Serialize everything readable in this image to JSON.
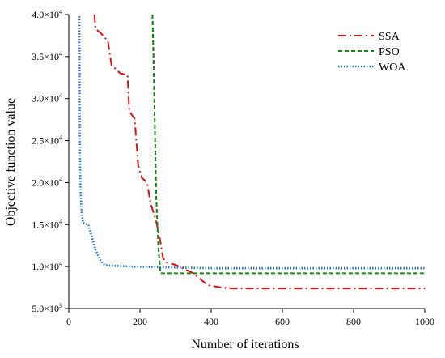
{
  "chart_data": {
    "type": "line",
    "xlabel": "Number of iterations",
    "ylabel": "Objective function value",
    "xlim": [
      0,
      1000
    ],
    "ylim": [
      5000,
      40000
    ],
    "x_ticks": [
      0,
      200,
      400,
      600,
      800,
      1000
    ],
    "y_ticks": [
      {
        "value": 5000,
        "mant": "5.0",
        "exp": "3"
      },
      {
        "value": 10000,
        "mant": "1.0",
        "exp": "4"
      },
      {
        "value": 15000,
        "mant": "1.5",
        "exp": "4"
      },
      {
        "value": 20000,
        "mant": "2.0",
        "exp": "4"
      },
      {
        "value": 25000,
        "mant": "2.5",
        "exp": "4"
      },
      {
        "value": 30000,
        "mant": "3.0",
        "exp": "4"
      },
      {
        "value": 35000,
        "mant": "3.5",
        "exp": "4"
      },
      {
        "value": 40000,
        "mant": "4.0",
        "exp": "4"
      }
    ],
    "grid": false,
    "legend_position": "top-right",
    "series": [
      {
        "name": "SSA",
        "color": "#e01010",
        "dash": "dash-dot",
        "points": [
          [
            72,
            40000
          ],
          [
            75,
            38300
          ],
          [
            90,
            37800
          ],
          [
            110,
            36800
          ],
          [
            120,
            34000
          ],
          [
            145,
            33000
          ],
          [
            165,
            32800
          ],
          [
            170,
            28500
          ],
          [
            185,
            27600
          ],
          [
            195,
            22000
          ],
          [
            205,
            20600
          ],
          [
            220,
            20000
          ],
          [
            230,
            17500
          ],
          [
            245,
            15500
          ],
          [
            255,
            13500
          ],
          [
            265,
            11000
          ],
          [
            275,
            10500
          ],
          [
            300,
            10200
          ],
          [
            320,
            9800
          ],
          [
            350,
            9200
          ],
          [
            370,
            8500
          ],
          [
            390,
            7800
          ],
          [
            430,
            7500
          ],
          [
            460,
            7400
          ],
          [
            1000,
            7400
          ]
        ]
      },
      {
        "name": "PSO",
        "color": "#118811",
        "dash": "dashed",
        "points": [
          [
            235,
            40000
          ],
          [
            238,
            35000
          ],
          [
            242,
            26000
          ],
          [
            246,
            18000
          ],
          [
            252,
            12000
          ],
          [
            258,
            9200
          ],
          [
            1000,
            9200
          ]
        ]
      },
      {
        "name": "WOA",
        "color": "#1e78d2",
        "dash": "dotted",
        "points": [
          [
            30,
            39800
          ],
          [
            31,
            25000
          ],
          [
            33,
            19000
          ],
          [
            36,
            16500
          ],
          [
            40,
            15200
          ],
          [
            55,
            15000
          ],
          [
            65,
            13500
          ],
          [
            75,
            12000
          ],
          [
            88,
            10800
          ],
          [
            100,
            10200
          ],
          [
            120,
            10100
          ],
          [
            180,
            10000
          ],
          [
            300,
            9900
          ],
          [
            400,
            9800
          ],
          [
            1000,
            9800
          ]
        ]
      }
    ]
  }
}
